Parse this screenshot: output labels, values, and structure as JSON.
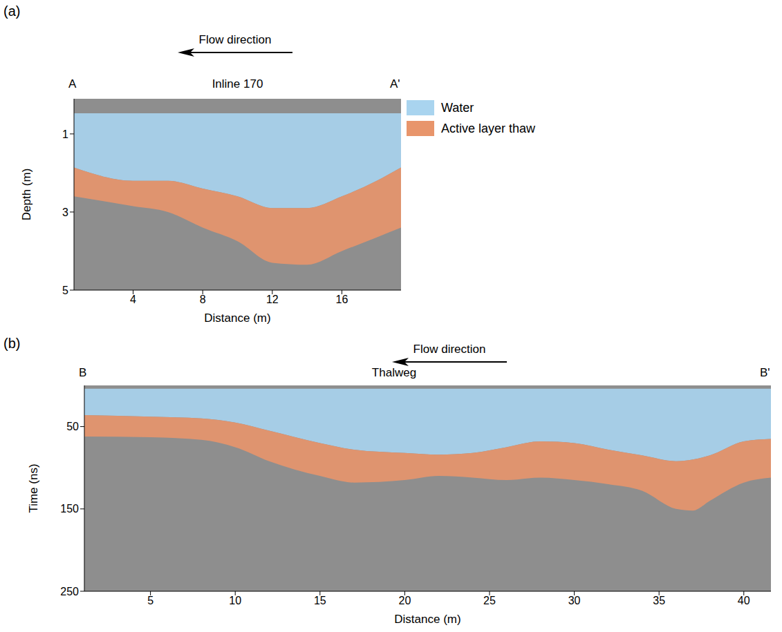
{
  "chart_data": [
    {
      "type": "area",
      "panel_label": "(a)",
      "title": "Inline 170",
      "flow_label": "Flow direction",
      "start_label": "A",
      "end_label": "A'",
      "x_label": "Distance (m)",
      "y_label": "Depth (m)",
      "xlim": [
        0.6,
        19.4
      ],
      "ylim": [
        0.1,
        5
      ],
      "xticks": [
        4,
        8,
        12,
        16
      ],
      "yticks": [
        1,
        3,
        5
      ],
      "legend": "right",
      "x": [
        0.6,
        4,
        6,
        8,
        10,
        12,
        14,
        16,
        18,
        19.4
      ],
      "series": [
        {
          "name": "Water",
          "color": "#a9d4ef",
          "values": [
            [
              0.47,
              1.86
            ],
            [
              0.47,
              2.2
            ],
            [
              0.47,
              2.2
            ],
            [
              0.47,
              2.4
            ],
            [
              0.47,
              2.6
            ],
            [
              0.47,
              2.9
            ],
            [
              0.47,
              2.9
            ],
            [
              0.47,
              2.6
            ],
            [
              0.47,
              2.2
            ],
            [
              0.47,
              1.86
            ]
          ]
        },
        {
          "name": "Active layer thaw",
          "color": "#e8956b",
          "values": [
            [
              1.86,
              2.6
            ],
            [
              2.2,
              2.85
            ],
            [
              2.2,
              3.0
            ],
            [
              2.4,
              3.4
            ],
            [
              2.6,
              3.75
            ],
            [
              2.9,
              4.3
            ],
            [
              2.9,
              4.35
            ],
            [
              2.6,
              4.0
            ],
            [
              2.2,
              3.65
            ],
            [
              1.86,
              3.4
            ]
          ]
        }
      ]
    },
    {
      "type": "area",
      "panel_label": "(b)",
      "title": "Thalweg",
      "flow_label": "Flow direction",
      "start_label": "B",
      "end_label": "B'",
      "x_label": "Distance (m)",
      "y_label": "Time (ns)",
      "xlim": [
        1.1,
        41.6
      ],
      "ylim": [
        0,
        250
      ],
      "xticks": [
        5,
        10,
        15,
        20,
        25,
        30,
        35,
        40
      ],
      "yticks": [
        50,
        150,
        250
      ],
      "x": [
        1.1,
        5,
        8,
        10,
        12,
        15,
        17,
        20,
        22,
        24,
        26,
        28,
        30,
        32,
        34,
        36,
        37,
        38,
        40,
        41.6
      ],
      "series": [
        {
          "name": "Water",
          "color": "#a9d4ef",
          "values": [
            [
              4,
              36
            ],
            [
              4,
              38
            ],
            [
              4,
              40
            ],
            [
              4,
              45
            ],
            [
              4,
              55
            ],
            [
              4,
              70
            ],
            [
              4,
              78
            ],
            [
              4,
              82
            ],
            [
              4,
              84
            ],
            [
              4,
              82
            ],
            [
              4,
              75
            ],
            [
              4,
              68
            ],
            [
              4,
              70
            ],
            [
              4,
              78
            ],
            [
              4,
              85
            ],
            [
              4,
              92
            ],
            [
              4,
              90
            ],
            [
              4,
              85
            ],
            [
              4,
              68
            ],
            [
              4,
              65
            ]
          ]
        },
        {
          "name": "Active layer thaw",
          "color": "#e8956b",
          "values": [
            [
              36,
              62
            ],
            [
              38,
              63
            ],
            [
              40,
              66
            ],
            [
              45,
              75
            ],
            [
              55,
              92
            ],
            [
              70,
              110
            ],
            [
              78,
              118
            ],
            [
              82,
              115
            ],
            [
              84,
              110
            ],
            [
              82,
              112
            ],
            [
              75,
              115
            ],
            [
              68,
              112
            ],
            [
              70,
              115
            ],
            [
              78,
              120
            ],
            [
              85,
              128
            ],
            [
              92,
              150
            ],
            [
              90,
              152
            ],
            [
              85,
              140
            ],
            [
              68,
              118
            ],
            [
              65,
              112
            ]
          ]
        }
      ]
    }
  ]
}
